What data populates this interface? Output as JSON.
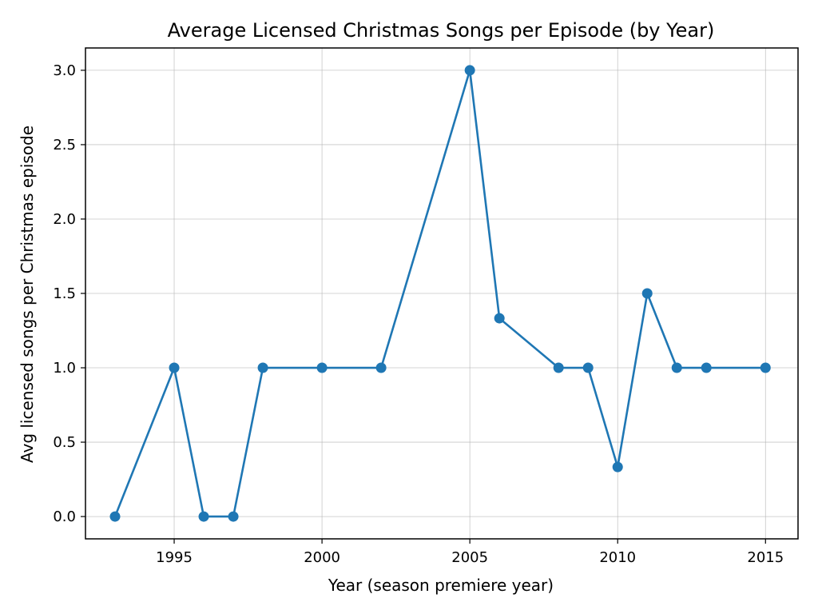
{
  "chart_data": {
    "type": "line",
    "title": "Average Licensed Christmas Songs per Episode (by Year)",
    "xlabel": "Year (season premiere year)",
    "ylabel": "Avg licensed songs per Christmas episode",
    "xlim": [
      1992.0,
      2016.1
    ],
    "ylim": [
      -0.15,
      3.15
    ],
    "x_ticks": [
      1995,
      2000,
      2005,
      2010,
      2015
    ],
    "y_ticks": [
      0.0,
      0.5,
      1.0,
      1.5,
      2.0,
      2.5,
      3.0
    ],
    "y_tick_labels": [
      "0.0",
      "0.5",
      "1.0",
      "1.5",
      "2.0",
      "2.5",
      "3.0"
    ],
    "grid": true,
    "legend": false,
    "series": [
      {
        "color": "#1f77b4",
        "marker": "circle",
        "x": [
          1993,
          1995,
          1996,
          1997,
          1998,
          2000,
          2002,
          2005,
          2006,
          2008,
          2009,
          2010,
          2011,
          2012,
          2013,
          2015
        ],
        "y": [
          0.0,
          1.0,
          0.0,
          0.0,
          1.0,
          1.0,
          1.0,
          3.0,
          1.333,
          1.0,
          1.0,
          0.333,
          1.5,
          1.0,
          1.0,
          1.0
        ]
      }
    ]
  }
}
